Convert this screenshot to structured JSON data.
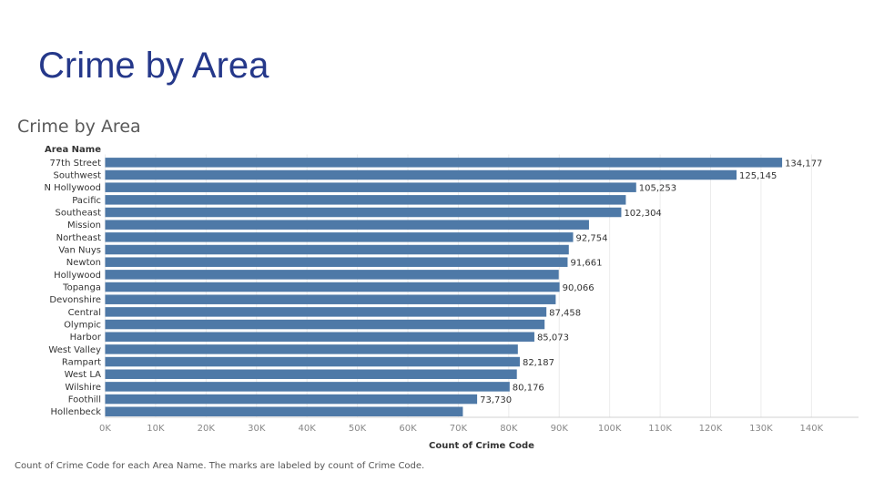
{
  "slide": {
    "title": "Crime by Area"
  },
  "chart_data": {
    "type": "bar",
    "orientation": "horizontal",
    "title": "Crime by Area",
    "row_header": "Area Name",
    "xlabel": "Count of Crime Code",
    "categories": [
      "77th Street",
      "Southwest",
      "N Hollywood",
      "Pacific",
      "Southeast",
      "Mission",
      "Northeast",
      "Van Nuys",
      "Newton",
      "Hollywood",
      "Topanga",
      "Devonshire",
      "Central",
      "Olympic",
      "Harbor",
      "West Valley",
      "Rampart",
      "West LA",
      "Wilshire",
      "Foothill",
      "Hollenbeck"
    ],
    "values": [
      134177,
      125145,
      105253,
      103200,
      102304,
      95900,
      92754,
      91900,
      91661,
      89900,
      90066,
      89300,
      87458,
      87100,
      85073,
      81800,
      82187,
      81600,
      80176,
      73730,
      70900
    ],
    "data_labels": [
      "134,177",
      "125,145",
      "105,253",
      "",
      "102,304",
      "",
      "92,754",
      "",
      "91,661",
      "",
      "90,066",
      "",
      "87,458",
      "",
      "85,073",
      "",
      "82,187",
      "",
      "80,176",
      "73,730",
      ""
    ],
    "xlim": [
      0,
      145000
    ],
    "xticks": [
      0,
      10000,
      20000,
      30000,
      40000,
      50000,
      60000,
      70000,
      80000,
      90000,
      100000,
      110000,
      120000,
      130000,
      140000
    ],
    "xtick_labels": [
      "0K",
      "10K",
      "20K",
      "30K",
      "40K",
      "50K",
      "60K",
      "70K",
      "80K",
      "90K",
      "100K",
      "110K",
      "120K",
      "130K",
      "140K"
    ],
    "grid": true,
    "bar_color": "#4e79a7"
  },
  "caption": "Count of Crime Code for each Area Name.  The marks are labeled by count of Crime Code."
}
